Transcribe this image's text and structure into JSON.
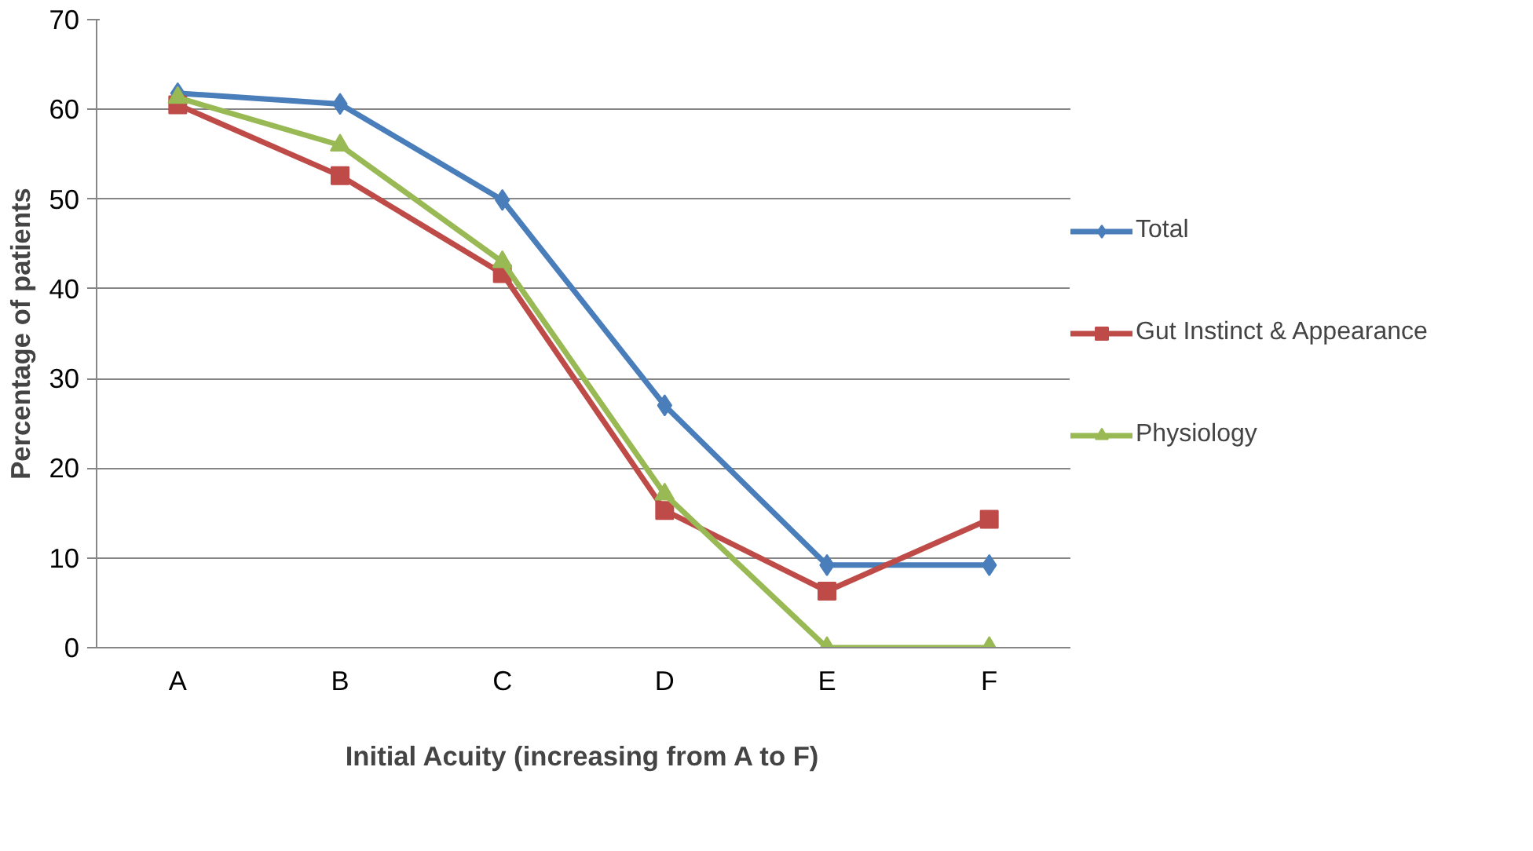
{
  "chart_data": {
    "type": "line",
    "xlabel": "Initial Acuity (increasing from A to F)",
    "ylabel": "Percentage of patients",
    "categories": [
      "A",
      "B",
      "C",
      "D",
      "E",
      "F"
    ],
    "series": [
      {
        "name": "Total",
        "color": "#4a7ebb",
        "marker": "diamond",
        "values": [
          61.8,
          60.6,
          49.9,
          27,
          9.2,
          9.2
        ]
      },
      {
        "name": "Gut Instinct & Appearance",
        "color": "#be4b48",
        "marker": "square",
        "values": [
          60.5,
          52.6,
          41.7,
          15.3,
          6.3,
          14.3
        ]
      },
      {
        "name": "Physiology",
        "color": "#98b954",
        "marker": "triangle",
        "values": [
          61.3,
          56,
          43,
          17.1,
          0,
          0
        ]
      }
    ],
    "ylim": [
      0,
      70
    ],
    "yticks": [
      0,
      10,
      20,
      30,
      40,
      50,
      60,
      70
    ],
    "grid": "y",
    "legend": "right",
    "line_style": "solid"
  }
}
